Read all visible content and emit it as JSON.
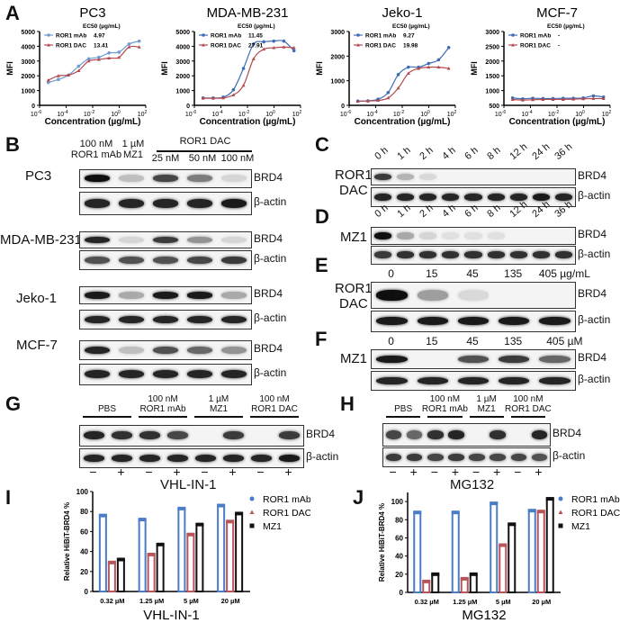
{
  "panels": {
    "A": "A",
    "B": "B",
    "C": "C",
    "D": "D",
    "E": "E",
    "F": "F",
    "G": "G",
    "H": "H",
    "I": "I",
    "J": "J"
  },
  "colors": {
    "mab": "#3e6db6",
    "mab_light": "#6f9bd2",
    "dac": "#b44a4f",
    "mz1": "#111111",
    "bar_mab": "#4a7cc7",
    "bar_dac": "#b9555a"
  },
  "chart_data": [
    {
      "type": "line",
      "title": "PC3",
      "ylabel": "MFI",
      "xlabel": "Concentration (µg/mL)",
      "xscale": "log",
      "xlim": [
        1e-06,
        100
      ],
      "xtick_exponents": [
        -6,
        -4,
        -2,
        0,
        2
      ],
      "ylim": [
        0,
        5000
      ],
      "yticks": [
        0,
        1000,
        2000,
        3000,
        4000,
        5000
      ],
      "legend_title": "EC50 (µg/mL)",
      "legend": "top-left",
      "x": [
        4.5e-06,
        2.6e-05,
        0.00015,
        0.00087,
        0.005,
        0.029,
        0.17,
        0.96,
        5.5,
        32
      ],
      "series": [
        {
          "name": "ROR1 mAb",
          "ec50": "4.97",
          "color": "#6f9bd2",
          "y": [
            1550,
            1750,
            2050,
            2650,
            3150,
            3250,
            3550,
            3600,
            4150,
            4350
          ]
        },
        {
          "name": "ROR1 DAC",
          "ec50": "13.41",
          "color": "#b44a4f",
          "y": [
            1700,
            2000,
            2050,
            2350,
            3000,
            3100,
            3200,
            3250,
            3950,
            3950
          ]
        }
      ]
    },
    {
      "type": "line",
      "title": "MDA-MB-231",
      "ylabel": "MFI",
      "xlabel": "Concentration (µg/mL)",
      "xscale": "log",
      "xlim": [
        1e-06,
        100
      ],
      "xtick_exponents": [
        -6,
        -4,
        -2,
        0,
        2
      ],
      "ylim": [
        0,
        5000
      ],
      "yticks": [
        0,
        1000,
        2000,
        3000,
        4000,
        5000
      ],
      "legend_title": "EC50 (µg/mL)",
      "legend": "top-left",
      "x": [
        4.5e-06,
        2.6e-05,
        0.00015,
        0.00087,
        0.005,
        0.029,
        0.17,
        0.96,
        5.5,
        32
      ],
      "series": [
        {
          "name": "ROR1 mAb",
          "ec50": "11.45",
          "color": "#3e6db6",
          "y": [
            500,
            500,
            550,
            1050,
            2500,
            4150,
            4300,
            4350,
            4350,
            3700
          ]
        },
        {
          "name": "ROR1 DAC",
          "ec50": "27.91",
          "color": "#b44a4f",
          "y": [
            480,
            480,
            500,
            700,
            1350,
            3150,
            3800,
            3900,
            3950,
            3900
          ]
        }
      ]
    },
    {
      "type": "line",
      "title": "Jeko-1",
      "ylabel": "MFI",
      "xlabel": "Concentration (µg/mL)",
      "xscale": "log",
      "xlim": [
        1e-06,
        100
      ],
      "xtick_exponents": [
        -6,
        -4,
        -2,
        0,
        2
      ],
      "ylim": [
        0,
        3000
      ],
      "yticks": [
        0,
        1000,
        2000,
        3000
      ],
      "legend_title": "EC50 (µg/mL)",
      "legend": "top-left",
      "x": [
        4.5e-06,
        2.6e-05,
        0.00015,
        0.00087,
        0.005,
        0.029,
        0.17,
        0.96,
        5.5,
        32
      ],
      "series": [
        {
          "name": "ROR1 mAb",
          "ec50": "9.27",
          "color": "#3e6db6",
          "y": [
            170,
            180,
            250,
            520,
            1250,
            1550,
            1550,
            1700,
            1850,
            2350
          ]
        },
        {
          "name": "ROR1 DAC",
          "ec50": "19.98",
          "color": "#b44a4f",
          "y": [
            170,
            180,
            200,
            300,
            700,
            1300,
            1500,
            1550,
            1550,
            1500
          ]
        }
      ]
    },
    {
      "type": "line",
      "title": "MCF-7",
      "ylabel": "MFI",
      "xlabel": "Concentration (µg/mL)",
      "xscale": "log",
      "xlim": [
        1e-06,
        100
      ],
      "xtick_exponents": [
        -6,
        -4,
        -2,
        0,
        2
      ],
      "ylim": [
        500,
        3000
      ],
      "yticks": [
        500,
        1000,
        1500,
        2000,
        2500,
        3000
      ],
      "legend_title": "EC50 (µg/mL)",
      "legend": "top-left",
      "x": [
        4.5e-06,
        2.6e-05,
        0.00015,
        0.00087,
        0.005,
        0.029,
        0.17,
        0.96,
        5.5,
        32
      ],
      "series": [
        {
          "name": "ROR1 mAb",
          "ec50": "-",
          "color": "#3e6db6",
          "y": [
            750,
            720,
            740,
            730,
            730,
            740,
            740,
            750,
            820,
            780
          ]
        },
        {
          "name": "ROR1 DAC",
          "ec50": "-",
          "color": "#b44a4f",
          "y": [
            700,
            680,
            690,
            700,
            700,
            700,
            710,
            720,
            730,
            730
          ]
        }
      ]
    },
    {
      "type": "bar",
      "title": "",
      "ylabel": "Relative HiBiT-BRD4 %",
      "xlabel": "VHL-IN-1",
      "ylim": [
        0,
        100
      ],
      "yticks": [
        0,
        20,
        40,
        60,
        80,
        100
      ],
      "legend": "right",
      "categories": [
        "0.32 µM",
        "1.25 µM",
        "5 µM",
        "20 µM"
      ],
      "series": [
        {
          "name": "ROR1 mAb",
          "color": "#4a7cc7",
          "values": [
            76,
            72,
            83,
            86
          ]
        },
        {
          "name": "ROR1 DAC",
          "color": "#b9555a",
          "values": [
            29,
            37,
            57,
            70
          ]
        },
        {
          "name": "MZ1",
          "color": "#111111",
          "values": [
            32,
            47,
            67,
            78
          ]
        }
      ]
    },
    {
      "type": "bar",
      "title": "",
      "ylabel": "Relative HiBiT-BRD4 %",
      "xlabel": "MG132",
      "ylim": [
        0,
        110
      ],
      "yticks": [
        0,
        20,
        40,
        60,
        80,
        100
      ],
      "legend": "right",
      "categories": [
        "0.32 µM",
        "1.25 µM",
        "5 µM",
        "20 µM"
      ],
      "series": [
        {
          "name": "ROR1 mAb",
          "color": "#4a7cc7",
          "values": [
            88,
            88,
            98,
            90
          ]
        },
        {
          "name": "ROR1 DAC",
          "color": "#b9555a",
          "values": [
            12,
            15,
            52,
            89
          ]
        },
        {
          "name": "MZ1",
          "color": "#111111",
          "values": [
            20,
            20,
            75,
            103
          ]
        }
      ]
    }
  ],
  "B": {
    "lanes": [
      [
        "100 nM",
        "ROR1 mAb"
      ],
      [
        "1 µM",
        "MZ1"
      ]
    ],
    "dac_group": "ROR1 DAC",
    "dac_lanes": [
      "25 nM",
      "50 nM",
      "100 nM"
    ],
    "cells": [
      "PC3",
      "MDA-MB-231",
      "Jeko-1",
      "MCF-7"
    ]
  },
  "C": {
    "treatment": [
      "ROR1",
      "DAC"
    ],
    "times": [
      "0 h",
      "1 h",
      "2 h",
      "4 h",
      "6 h",
      "8 h",
      "12 h",
      "24 h",
      "36 h"
    ]
  },
  "D": {
    "treatment": "MZ1",
    "times": [
      "0 h",
      "1 h",
      "2 h",
      "4 h",
      "6 h",
      "8 h",
      "12 h",
      "24 h",
      "36 h"
    ]
  },
  "E": {
    "treatment": [
      "ROR1",
      "DAC"
    ],
    "doses": [
      "0",
      "15",
      "45",
      "135",
      "405 µg/mL"
    ]
  },
  "F": {
    "treatment": "MZ1",
    "doses": [
      "0",
      "15",
      "45",
      "135",
      "405 µM"
    ]
  },
  "G": {
    "groups": [
      [
        "",
        "PBS"
      ],
      [
        "100 nM",
        "ROR1 mAb"
      ],
      [
        "1 µM",
        "MZ1"
      ],
      [
        "100 nM",
        "ROR1  DAC"
      ]
    ],
    "signs": [
      "−",
      "+",
      "−",
      "+",
      "−",
      "+",
      "−",
      "+"
    ],
    "inhibitor": "VHL-IN-1"
  },
  "H": {
    "groups": [
      [
        "",
        "PBS"
      ],
      [
        "100 nM",
        "ROR1 mAb"
      ],
      [
        "1 µM",
        "MZ1"
      ],
      [
        "100 nM",
        "ROR1  DAC"
      ]
    ],
    "signs": [
      "−",
      "+",
      "−",
      "+",
      "−",
      "+",
      "−",
      "+"
    ],
    "inhibitor": "MG132"
  },
  "blots": {
    "B_pc3_brd4": {
      "label": "BRD4",
      "bands": [
        1,
        0.2,
        0.75,
        0.5,
        0.1
      ]
    },
    "B_pc3_actin": {
      "label": "β-actin",
      "bands": [
        0.9,
        0.9,
        0.9,
        0.9,
        0.95
      ]
    },
    "B_mda_brd4": {
      "label": "BRD4",
      "bands": [
        0.9,
        0.1,
        0.8,
        0.4,
        0.1
      ]
    },
    "B_mda_actin": {
      "label": "β-actin",
      "bands": [
        0.7,
        0.7,
        0.7,
        0.75,
        0.8
      ]
    },
    "B_jeko_brd4": {
      "label": "BRD4",
      "bands": [
        0.95,
        0.3,
        0.95,
        0.95,
        0.3
      ]
    },
    "B_jeko_actin": {
      "label": "β-actin",
      "bands": [
        0.9,
        0.9,
        0.9,
        0.9,
        0.9
      ]
    },
    "B_mcf_brd4": {
      "label": "BRD4",
      "bands": [
        0.9,
        0.2,
        0.7,
        0.6,
        0.4
      ]
    },
    "B_mcf_actin": {
      "label": "β-actin",
      "bands": [
        0.9,
        0.9,
        0.9,
        0.9,
        0.9
      ]
    },
    "C_brd4": {
      "label": "BRD4",
      "bands": [
        0.8,
        0.25,
        0.08,
        0,
        0,
        0,
        0,
        0,
        0
      ]
    },
    "C_actin": {
      "label": "β-actin",
      "bands": [
        0.9,
        0.9,
        0.9,
        0.9,
        0.9,
        0.9,
        0.9,
        0.95,
        0.9
      ]
    },
    "D_brd4": {
      "label": "BRD4",
      "bands": [
        1,
        0.3,
        0.1,
        0.05,
        0.05,
        0.05,
        0,
        0,
        0
      ]
    },
    "D_actin": {
      "label": "β-actin",
      "bands": [
        0.8,
        0.85,
        0.85,
        0.85,
        0.85,
        0.85,
        0.85,
        0.85,
        0.85
      ]
    },
    "E_brd4": {
      "label": "BRD4",
      "bands": [
        1,
        0.35,
        0.08,
        0,
        0
      ]
    },
    "E_actin": {
      "label": "β-actin",
      "bands": [
        0.95,
        0.95,
        0.95,
        0.95,
        0.95
      ]
    },
    "F_brd4": {
      "label": "BRD4",
      "bands": [
        0.95,
        0,
        0.7,
        0.8,
        0.6
      ]
    },
    "F_actin": {
      "label": "β-actin",
      "bands": [
        0.9,
        0.9,
        0.9,
        0.9,
        0.9
      ]
    },
    "G_brd4": {
      "label": "BRD4",
      "bands": [
        0.9,
        0.85,
        0.85,
        0.75,
        0,
        0.8,
        0,
        0.8
      ]
    },
    "G_actin": {
      "label": "β-actin",
      "bands": [
        0.9,
        0.9,
        0.9,
        0.9,
        0.9,
        0.9,
        0.9,
        0.95
      ]
    },
    "H_brd4": {
      "label": "BRD4",
      "bands": [
        0.75,
        0.6,
        0.85,
        0.9,
        0,
        0.85,
        0,
        0.9
      ]
    },
    "H_actin": {
      "label": "β-actin",
      "bands": [
        0.8,
        0.8,
        0.75,
        0.8,
        0.75,
        0.75,
        0.75,
        0.7
      ]
    }
  }
}
